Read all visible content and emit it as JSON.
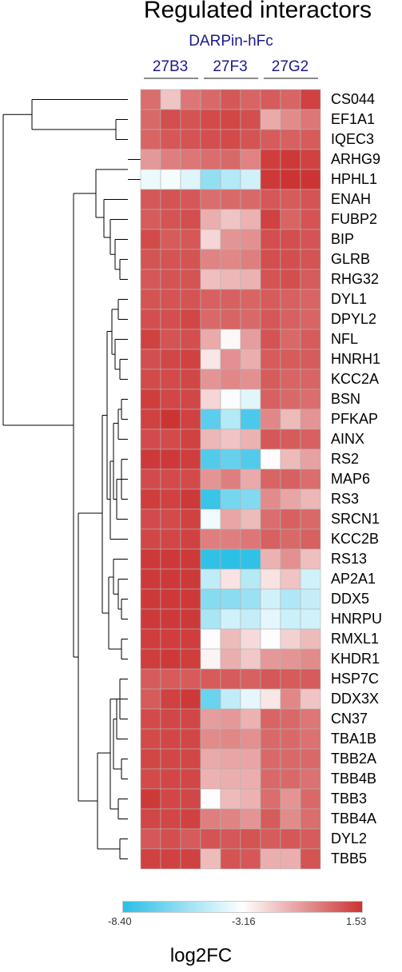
{
  "chart_data": {
    "type": "heatmap",
    "title": "Regulated interactors",
    "subtitle": "DARPin-hFc",
    "groups": [
      "27B3",
      "27F3",
      "27G2"
    ],
    "rows": [
      "CS044",
      "EF1A1",
      "IQEC3",
      "ARHG9",
      "HPHL1",
      "ENAH",
      "FUBP2",
      "BIP",
      "GLRB",
      "RHG32",
      "DYL1",
      "DPYL2",
      "NFL",
      "HNRH1",
      "KCC2A",
      "BSN",
      "PFKAP",
      "AINX",
      "RS2",
      "MAP6",
      "RS3",
      "SRCN1",
      "KCC2B",
      "RS13",
      "AP2A1",
      "DDX5",
      "HNRPU",
      "RMXL1",
      "KHDR1",
      "HSP7C",
      "DDX3X",
      "CN37",
      "TBA1B",
      "TBB2A",
      "TBB4B",
      "TBB3",
      "TBB4A",
      "DYL2",
      "TBB5"
    ],
    "values": [
      [
        0.2,
        -1.8,
        0.0,
        0.3,
        0.7,
        0.4,
        0.6,
        0.4,
        1.2
      ],
      [
        0.3,
        0.9,
        0.8,
        1.0,
        1.1,
        0.9,
        -1.2,
        -0.5,
        0.0
      ],
      [
        0.4,
        0.7,
        0.8,
        0.9,
        1.0,
        0.8,
        0.6,
        0.5,
        0.6
      ],
      [
        -0.8,
        -0.2,
        0.0,
        0.2,
        0.3,
        -0.3,
        1.3,
        1.4,
        1.2
      ],
      [
        -3.6,
        -3.4,
        -4.0,
        -5.8,
        -5.0,
        -4.3,
        1.4,
        1.5,
        1.5
      ],
      [
        0.7,
        0.8,
        0.7,
        0.2,
        0.3,
        0.3,
        0.7,
        0.6,
        0.8
      ],
      [
        0.6,
        0.8,
        0.9,
        -1.3,
        -1.8,
        -1.4,
        1.2,
        0.4,
        0.8
      ],
      [
        1.0,
        0.6,
        0.7,
        -2.2,
        -0.7,
        -0.6,
        0.9,
        0.9,
        0.8
      ],
      [
        0.8,
        0.8,
        0.8,
        -0.3,
        -0.4,
        -0.2,
        0.9,
        0.9,
        0.8
      ],
      [
        0.7,
        0.8,
        0.8,
        -1.7,
        -1.5,
        -1.4,
        0.8,
        0.9,
        0.6
      ],
      [
        0.8,
        0.8,
        0.8,
        0.5,
        0.5,
        0.4,
        0.6,
        0.5,
        0.4
      ],
      [
        0.9,
        0.9,
        1.1,
        0.3,
        0.4,
        0.3,
        0.7,
        0.5,
        0.4
      ],
      [
        1.2,
        0.8,
        0.9,
        -1.2,
        -3.0,
        -0.9,
        0.8,
        0.3,
        0.6
      ],
      [
        0.9,
        1.1,
        1.2,
        -2.6,
        -0.6,
        -1.3,
        0.6,
        0.6,
        0.6
      ],
      [
        1.0,
        1.0,
        1.1,
        -0.7,
        -0.4,
        -0.6,
        0.6,
        0.4,
        0.4
      ],
      [
        1.3,
        1.1,
        1.1,
        -2.2,
        -3.3,
        -3.9,
        0.5,
        0.3,
        0.2
      ],
      [
        1.2,
        1.5,
        1.2,
        -7.2,
        -5.0,
        -7.6,
        -0.4,
        -1.6,
        -0.7
      ],
      [
        1.0,
        1.0,
        1.2,
        -1.5,
        -1.8,
        -1.4,
        0.7,
        0.6,
        0.5
      ],
      [
        1.4,
        1.4,
        1.3,
        -7.4,
        -6.9,
        -7.4,
        -3.1,
        -1.6,
        -1.0
      ],
      [
        1.0,
        1.0,
        1.0,
        -0.7,
        -0.2,
        -1.2,
        0.4,
        0.5,
        0.2
      ],
      [
        1.3,
        1.2,
        1.4,
        -8.0,
        -6.5,
        -6.2,
        -0.5,
        -1.1,
        -1.5
      ],
      [
        1.0,
        1.0,
        1.2,
        -3.5,
        -1.1,
        -1.6,
        0.2,
        0.5,
        0.3
      ],
      [
        1.1,
        1.1,
        1.2,
        -0.2,
        -0.2,
        0.0,
        0.5,
        0.3,
        0.5
      ],
      [
        1.4,
        1.4,
        1.4,
        -8.2,
        -8.3,
        -8.2,
        -1.4,
        -0.6,
        -1.7
      ],
      [
        1.4,
        1.4,
        1.4,
        -4.7,
        -2.5,
        -5.0,
        -2.5,
        -1.8,
        -4.3
      ],
      [
        1.4,
        1.4,
        1.4,
        -6.1,
        -6.0,
        -5.6,
        -4.3,
        -5.1,
        -4.6
      ],
      [
        1.4,
        1.4,
        1.4,
        -5.3,
        -4.3,
        -4.6,
        -3.8,
        -4.4,
        -4.3
      ],
      [
        1.3,
        1.3,
        1.3,
        -3.1,
        -1.6,
        -2.3,
        -3.1,
        -2.1,
        -1.6
      ],
      [
        1.3,
        1.4,
        1.3,
        -2.9,
        -1.3,
        -1.9,
        -0.8,
        -0.7,
        -0.5
      ],
      [
        0.6,
        0.6,
        0.6,
        0.6,
        0.6,
        0.5,
        0.7,
        0.6,
        0.6
      ],
      [
        0.6,
        1.2,
        1.4,
        -6.8,
        -4.7,
        -3.8,
        -2.6,
        -0.4,
        -1.8
      ],
      [
        1.0,
        1.1,
        1.1,
        -0.9,
        -0.8,
        -1.4,
        0.4,
        0.3,
        0.0
      ],
      [
        1.0,
        1.1,
        1.1,
        -0.5,
        -0.4,
        -0.6,
        0.3,
        0.3,
        0.1
      ],
      [
        1.1,
        1.1,
        1.1,
        -1.2,
        -1.1,
        -1.1,
        0.3,
        0.3,
        0.3
      ],
      [
        1.0,
        1.1,
        1.1,
        -1.4,
        -1.3,
        -1.3,
        0.3,
        0.3,
        0.1
      ],
      [
        1.4,
        1.1,
        1.1,
        -3.1,
        -1.6,
        -1.4,
        0.2,
        -0.7,
        0.3
      ],
      [
        1.1,
        1.1,
        1.2,
        -0.2,
        -0.3,
        -0.7,
        0.6,
        -0.5,
        0.2
      ],
      [
        0.7,
        0.9,
        0.6,
        0.8,
        0.7,
        0.8,
        0.6,
        0.7,
        0.6
      ],
      [
        1.2,
        1.2,
        1.2,
        -1.6,
        0.8,
        0.7,
        -1.3,
        -1.3,
        0.8
      ]
    ],
    "colorbar": {
      "label": "log2FC",
      "min": -8.4,
      "mid": -3.16,
      "max": 1.53,
      "min_label": "-8.40",
      "mid_label": "-3.16",
      "max_label": "1.53",
      "min_color": "#29bfe6",
      "mid_color": "#ffffff",
      "max_color": "#cc3333"
    },
    "cell_border_color": "#b4b4b4"
  }
}
